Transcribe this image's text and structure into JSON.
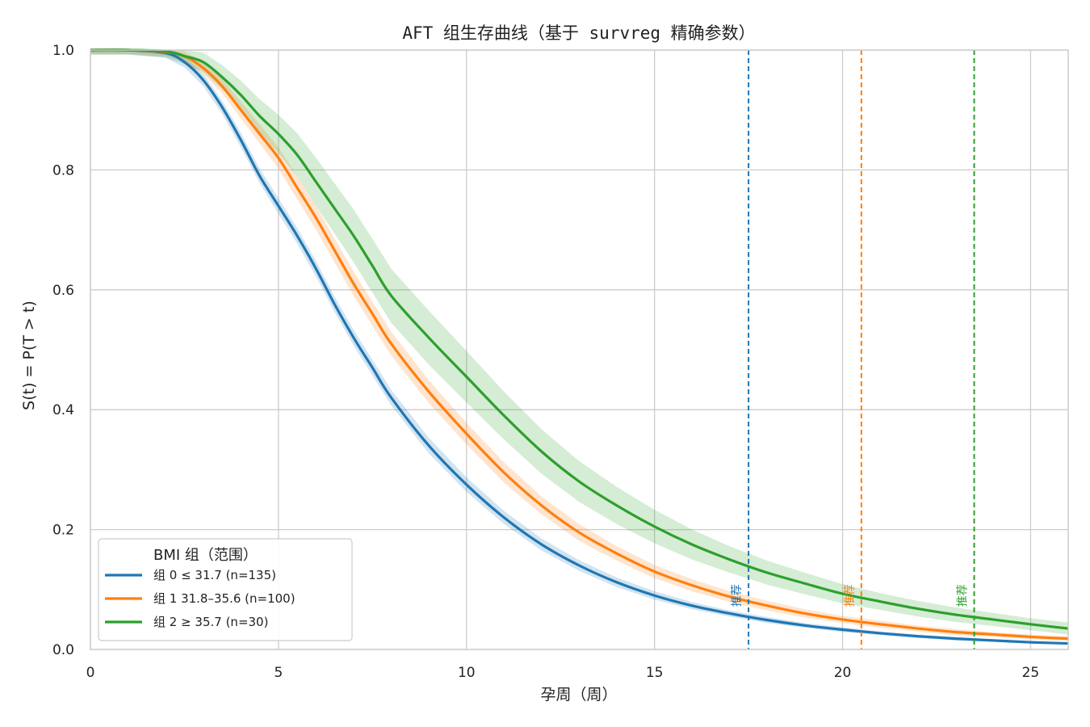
{
  "chart_data": {
    "type": "line",
    "title": "AFT 组生存曲线（基于 survreg 精确参数）",
    "xlabel": "孕周（周）",
    "ylabel": "S(t) = P(T > t)",
    "xlim": [
      0,
      26
    ],
    "ylim": [
      0,
      1.0
    ],
    "xticks": [
      "0",
      "5",
      "10",
      "15",
      "20",
      "25"
    ],
    "yticks": [
      "0.0",
      "0.2",
      "0.4",
      "0.6",
      "0.8",
      "1.0"
    ],
    "grid": true,
    "legend_title": "BMI 组（范围）",
    "legend_position": "lower-left",
    "series": [
      {
        "name": "组 0 ≤ 31.7 (n=135)",
        "color": "#1f77b4",
        "x": [
          0,
          1,
          2,
          2.5,
          3,
          3.5,
          4,
          4.5,
          5,
          5.5,
          6,
          6.5,
          7,
          7.5,
          8,
          9,
          10,
          11,
          12,
          13,
          14,
          15,
          16,
          17,
          18,
          19,
          20,
          21,
          22,
          23,
          24,
          25,
          26
        ],
        "y": [
          1.0,
          1.0,
          0.995,
          0.98,
          0.95,
          0.905,
          0.85,
          0.79,
          0.74,
          0.69,
          0.635,
          0.575,
          0.52,
          0.47,
          0.42,
          0.34,
          0.275,
          0.22,
          0.175,
          0.14,
          0.112,
          0.09,
          0.073,
          0.06,
          0.049,
          0.04,
          0.033,
          0.027,
          0.022,
          0.018,
          0.015,
          0.012,
          0.01
        ],
        "band": [
          0.007,
          0.007,
          0.008,
          0.009,
          0.01,
          0.011,
          0.012,
          0.012,
          0.013,
          0.013,
          0.013,
          0.013,
          0.013,
          0.013,
          0.013,
          0.013,
          0.012,
          0.011,
          0.01,
          0.009,
          0.008,
          0.007,
          0.006,
          0.005,
          0.005,
          0.004,
          0.004,
          0.003,
          0.003,
          0.003,
          0.002,
          0.002,
          0.002
        ],
        "recommended_week": 17.5
      },
      {
        "name": "组 1 31.8–35.6 (n=100)",
        "color": "#ff7f0e",
        "x": [
          0,
          1,
          2,
          2.5,
          3,
          3.5,
          4,
          4.5,
          5,
          5.5,
          6,
          6.5,
          7,
          7.5,
          8,
          9,
          10,
          11,
          12,
          13,
          14,
          15,
          16,
          17,
          18,
          19,
          20,
          21,
          22,
          23,
          24,
          25,
          26
        ],
        "y": [
          1.0,
          1.0,
          0.997,
          0.99,
          0.97,
          0.94,
          0.9,
          0.86,
          0.82,
          0.77,
          0.72,
          0.665,
          0.61,
          0.56,
          0.51,
          0.43,
          0.36,
          0.295,
          0.24,
          0.195,
          0.16,
          0.13,
          0.107,
          0.088,
          0.073,
          0.06,
          0.05,
          0.042,
          0.035,
          0.029,
          0.025,
          0.021,
          0.018
        ],
        "band": [
          0.006,
          0.006,
          0.007,
          0.008,
          0.01,
          0.012,
          0.014,
          0.016,
          0.018,
          0.019,
          0.02,
          0.02,
          0.02,
          0.02,
          0.02,
          0.019,
          0.018,
          0.017,
          0.015,
          0.014,
          0.012,
          0.011,
          0.01,
          0.009,
          0.008,
          0.007,
          0.006,
          0.006,
          0.005,
          0.005,
          0.004,
          0.004,
          0.004
        ],
        "recommended_week": 20.5
      },
      {
        "name": "组 2 ≥ 35.7 (n=30)",
        "color": "#2ca02c",
        "x": [
          0,
          1,
          2,
          2.5,
          3,
          3.5,
          4,
          4.5,
          5,
          5.5,
          6,
          6.5,
          7,
          7.5,
          8,
          9,
          10,
          11,
          12,
          13,
          14,
          15,
          16,
          17,
          18,
          19,
          20,
          21,
          22,
          23,
          24,
          25,
          26
        ],
        "y": [
          1.0,
          1.0,
          0.998,
          0.99,
          0.98,
          0.955,
          0.925,
          0.89,
          0.86,
          0.825,
          0.78,
          0.735,
          0.69,
          0.64,
          0.59,
          0.52,
          0.455,
          0.39,
          0.33,
          0.28,
          0.24,
          0.205,
          0.175,
          0.15,
          0.128,
          0.11,
          0.093,
          0.08,
          0.068,
          0.058,
          0.05,
          0.042,
          0.035
        ],
        "band": [
          0.008,
          0.008,
          0.01,
          0.013,
          0.016,
          0.02,
          0.024,
          0.028,
          0.032,
          0.036,
          0.04,
          0.042,
          0.044,
          0.045,
          0.045,
          0.045,
          0.043,
          0.04,
          0.037,
          0.034,
          0.031,
          0.028,
          0.025,
          0.022,
          0.02,
          0.018,
          0.016,
          0.014,
          0.013,
          0.012,
          0.011,
          0.01,
          0.01
        ],
        "recommended_week": 23.5
      }
    ],
    "annotations": [
      {
        "text": "推荐",
        "series": 0
      },
      {
        "text": "推荐",
        "series": 1
      },
      {
        "text": "推荐",
        "series": 2
      }
    ]
  }
}
